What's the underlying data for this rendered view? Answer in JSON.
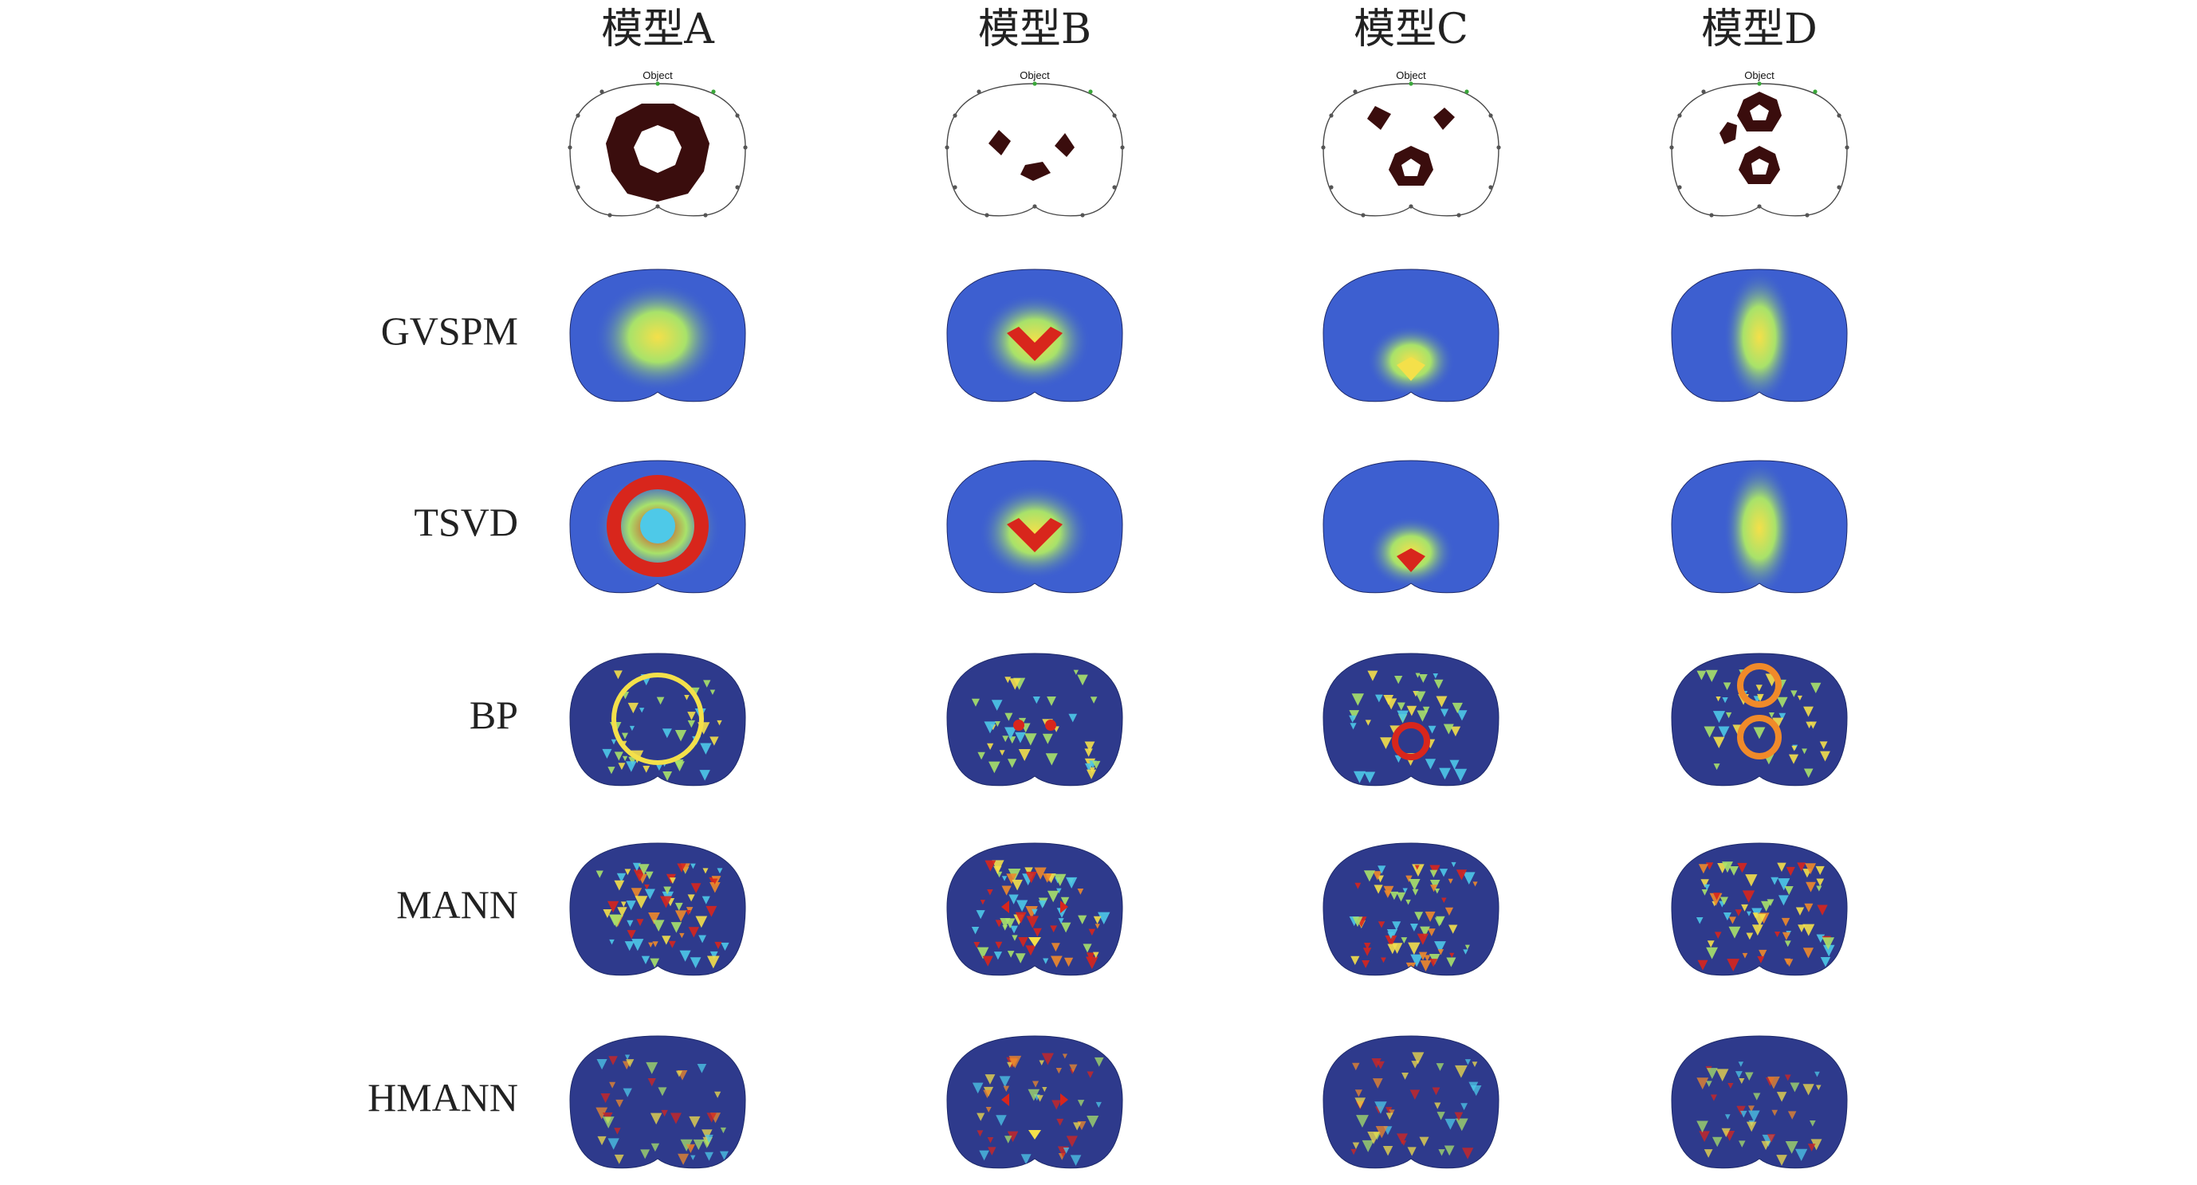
{
  "columns": [
    {
      "title": "模型A",
      "model": "A"
    },
    {
      "title": "模型B",
      "model": "B"
    },
    {
      "title": "模型C",
      "model": "C"
    },
    {
      "title": "模型D",
      "model": "D"
    }
  ],
  "rows": [
    {
      "label": "",
      "type": "object"
    },
    {
      "label": "GVSPM",
      "type": "recon"
    },
    {
      "label": "TSVD",
      "type": "recon"
    },
    {
      "label": "BP",
      "type": "recon"
    },
    {
      "label": "MANN",
      "type": "recon"
    },
    {
      "label": "HMANN",
      "type": "recon"
    }
  ],
  "object_panel_label": "Object",
  "colors": {
    "inclusion": "#3a0d0d",
    "background_dark": "#2e3a8c",
    "background_mid": "#3d5fd0",
    "cyan": "#4ec9e8",
    "green": "#a8e26a",
    "yellow": "#f4e04a",
    "orange": "#f08a2a",
    "red": "#d8261c"
  },
  "colormap": "jet"
}
